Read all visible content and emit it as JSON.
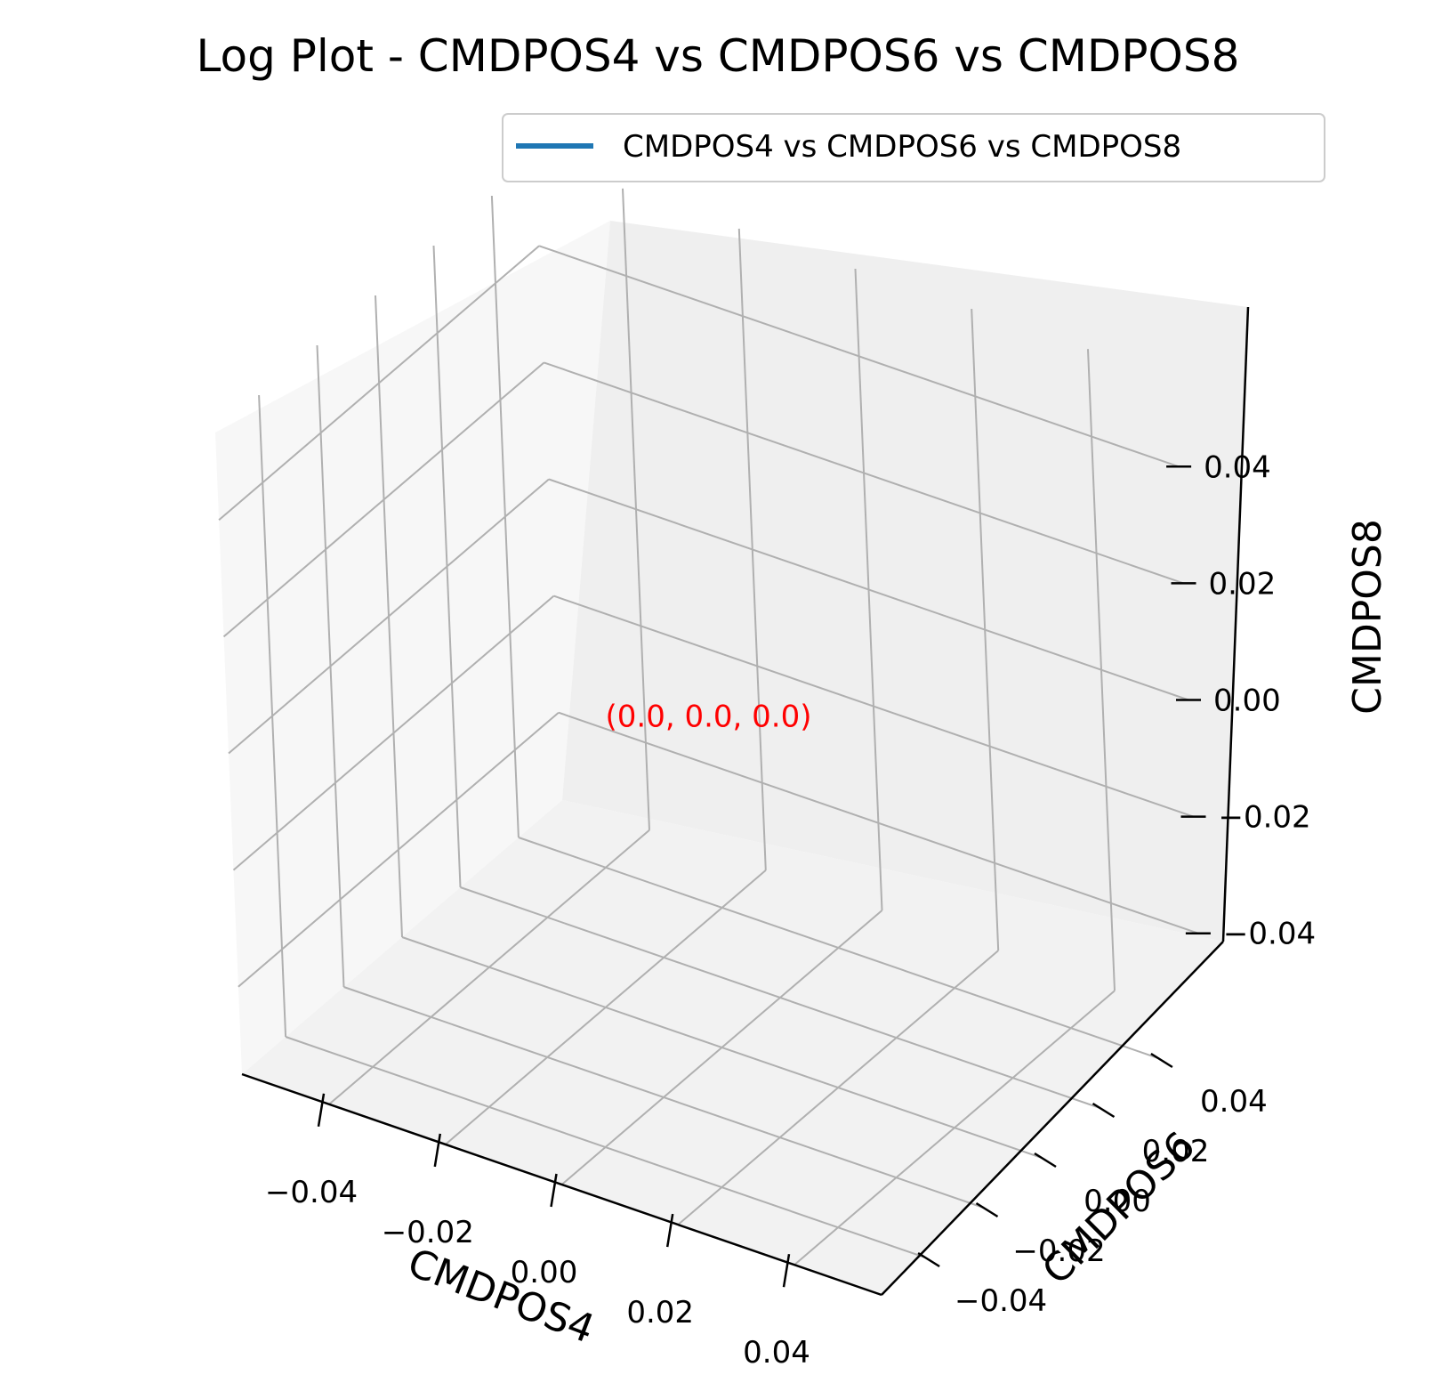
{
  "chart_data": {
    "type": "line3d",
    "title": "Log Plot - CMDPOS4 vs CMDPOS6 vs CMDPOS8",
    "xlabel": "CMDPOS4",
    "ylabel": "CMDPOS6",
    "zlabel": "CMDPOS8",
    "xlim": [
      -0.055,
      0.055
    ],
    "ylim": [
      -0.055,
      0.055
    ],
    "zlim": [
      -0.055,
      0.055
    ],
    "x_ticks": [
      "−0.04",
      "−0.02",
      "0.00",
      "0.02",
      "0.04"
    ],
    "y_ticks": [
      "−0.04",
      "−0.02",
      "0.00",
      "0.02",
      "0.04"
    ],
    "z_ticks": [
      "−0.04",
      "−0.02",
      "0.00",
      "0.02",
      "0.04"
    ],
    "grid": true,
    "legend_position": "top-right",
    "series": [
      {
        "name": "CMDPOS4 vs CMDPOS6 vs CMDPOS8",
        "color": "#1f77b4",
        "x": [
          0.0
        ],
        "y": [
          0.0
        ],
        "z": [
          0.0
        ]
      }
    ],
    "annotations": [
      {
        "text": "(0.0, 0.0, 0.0)",
        "x": 0.0,
        "y": 0.0,
        "z": 0.0,
        "color": "#ff0000"
      }
    ],
    "pane_colors": {
      "left": "#f7f7f7",
      "back": "#efefef",
      "floor": "#f2f2f2"
    }
  }
}
